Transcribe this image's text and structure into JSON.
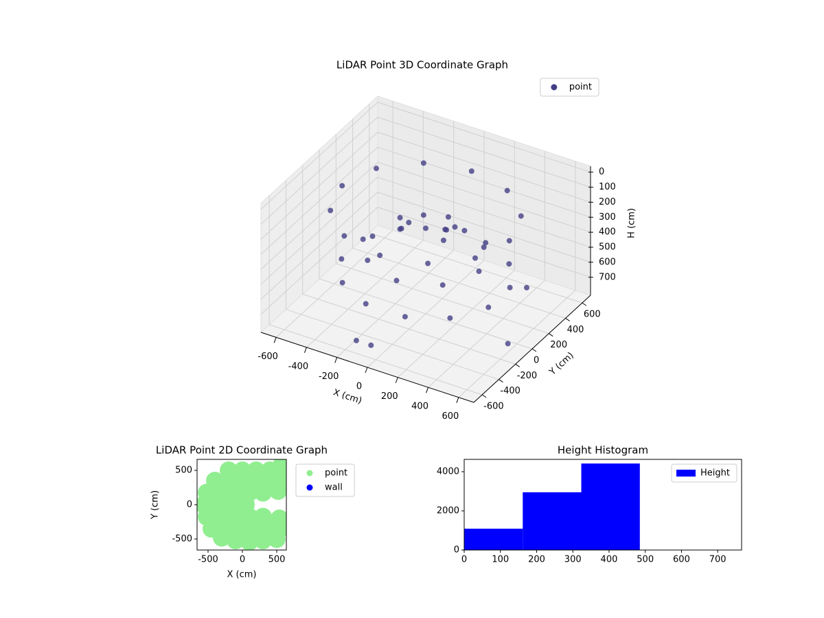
{
  "chart_data": [
    {
      "type": "scatter3d",
      "title": "LiDAR Point 3D Coordinate Graph",
      "xlabel": "X (cm)",
      "ylabel": "Y (cm)",
      "zlabel": "H (cm)",
      "xlim": [
        -700,
        700
      ],
      "ylim": [
        -700,
        700
      ],
      "zlim": [
        -40,
        820
      ],
      "z_inverted": true,
      "xticks": [
        -600,
        -400,
        -200,
        0,
        200,
        400,
        600
      ],
      "yticks": [
        -600,
        -400,
        -200,
        0,
        200,
        400,
        600
      ],
      "zticks": [
        0,
        100,
        200,
        300,
        400,
        500,
        600,
        700
      ],
      "legend": "upper right",
      "grid": true,
      "series": [
        {
          "name": "point",
          "color": "#433e85",
          "x": [
            550,
            476,
            275,
            0,
            -275,
            -476,
            -550,
            -476,
            -275,
            0,
            275,
            476,
            483,
            354,
            129,
            -129,
            -354,
            -483,
            -483,
            -354,
            -129,
            129,
            354,
            483,
            350,
            247,
            0,
            -247,
            -350,
            -247,
            0,
            247,
            0,
            100,
            -80,
            150,
            -120,
            50,
            200,
            -180,
            620,
            650,
            -100,
            -20
          ],
          "y": [
            0,
            275,
            476,
            550,
            476,
            275,
            0,
            -275,
            -476,
            -550,
            -476,
            -275,
            129,
            354,
            483,
            483,
            354,
            129,
            -129,
            -354,
            -483,
            -483,
            -354,
            -129,
            0,
            247,
            350,
            247,
            0,
            -247,
            -350,
            -247,
            0,
            50,
            120,
            -60,
            -90,
            180,
            100,
            20,
            80,
            -200,
            -650,
            -620
          ],
          "z": [
            150,
            150,
            150,
            150,
            150,
            150,
            150,
            150,
            150,
            150,
            150,
            150,
            550,
            550,
            550,
            550,
            550,
            550,
            550,
            550,
            550,
            550,
            550,
            550,
            420,
            420,
            420,
            420,
            420,
            420,
            420,
            420,
            250,
            250,
            250,
            250,
            250,
            250,
            250,
            250,
            480,
            700,
            700,
            720
          ]
        }
      ]
    },
    {
      "type": "scatter",
      "title": "LiDAR Point 2D Coordinate Graph",
      "xlabel": "X (cm)",
      "ylabel": "Y (cm)",
      "xlim": [
        -660,
        640
      ],
      "ylim": [
        -660,
        660
      ],
      "xticks": [
        -500,
        0,
        500
      ],
      "yticks": [
        -500,
        0,
        500
      ],
      "legend": "outside",
      "series": [
        {
          "name": "point",
          "color": "#90ee90",
          "x": [
            -200,
            0,
            200,
            400,
            560,
            -400,
            -200,
            0,
            200,
            400,
            600,
            -520,
            -300,
            -100,
            100,
            300,
            520,
            -560,
            -350,
            -150,
            50,
            -520,
            -300,
            -100,
            100,
            300,
            540,
            -450,
            -250,
            -50,
            150,
            350,
            550,
            -300,
            -100,
            100,
            300,
            500
          ],
          "y": [
            500,
            500,
            500,
            500,
            560,
            350,
            350,
            350,
            350,
            350,
            350,
            175,
            175,
            175,
            175,
            175,
            200,
            0,
            0,
            0,
            0,
            -175,
            -175,
            -175,
            -175,
            -175,
            -200,
            -350,
            -350,
            -350,
            -350,
            -350,
            -350,
            -480,
            -520,
            -540,
            -520,
            -500
          ]
        },
        {
          "name": "wall",
          "color": "#0000ff",
          "x": [],
          "y": []
        }
      ]
    },
    {
      "type": "histogram",
      "title": "Height Histogram",
      "xlim": [
        0,
        766
      ],
      "ylim": [
        0,
        4630
      ],
      "xticks": [
        0,
        100,
        200,
        300,
        400,
        500,
        600,
        700
      ],
      "yticks": [
        0,
        2000,
        4000
      ],
      "legend": "upper right",
      "bins": [
        0,
        161.7,
        323.3,
        485
      ],
      "series": [
        {
          "name": "Height",
          "color": "#0000ff",
          "values": [
            1090,
            2950,
            4420
          ]
        }
      ]
    }
  ]
}
